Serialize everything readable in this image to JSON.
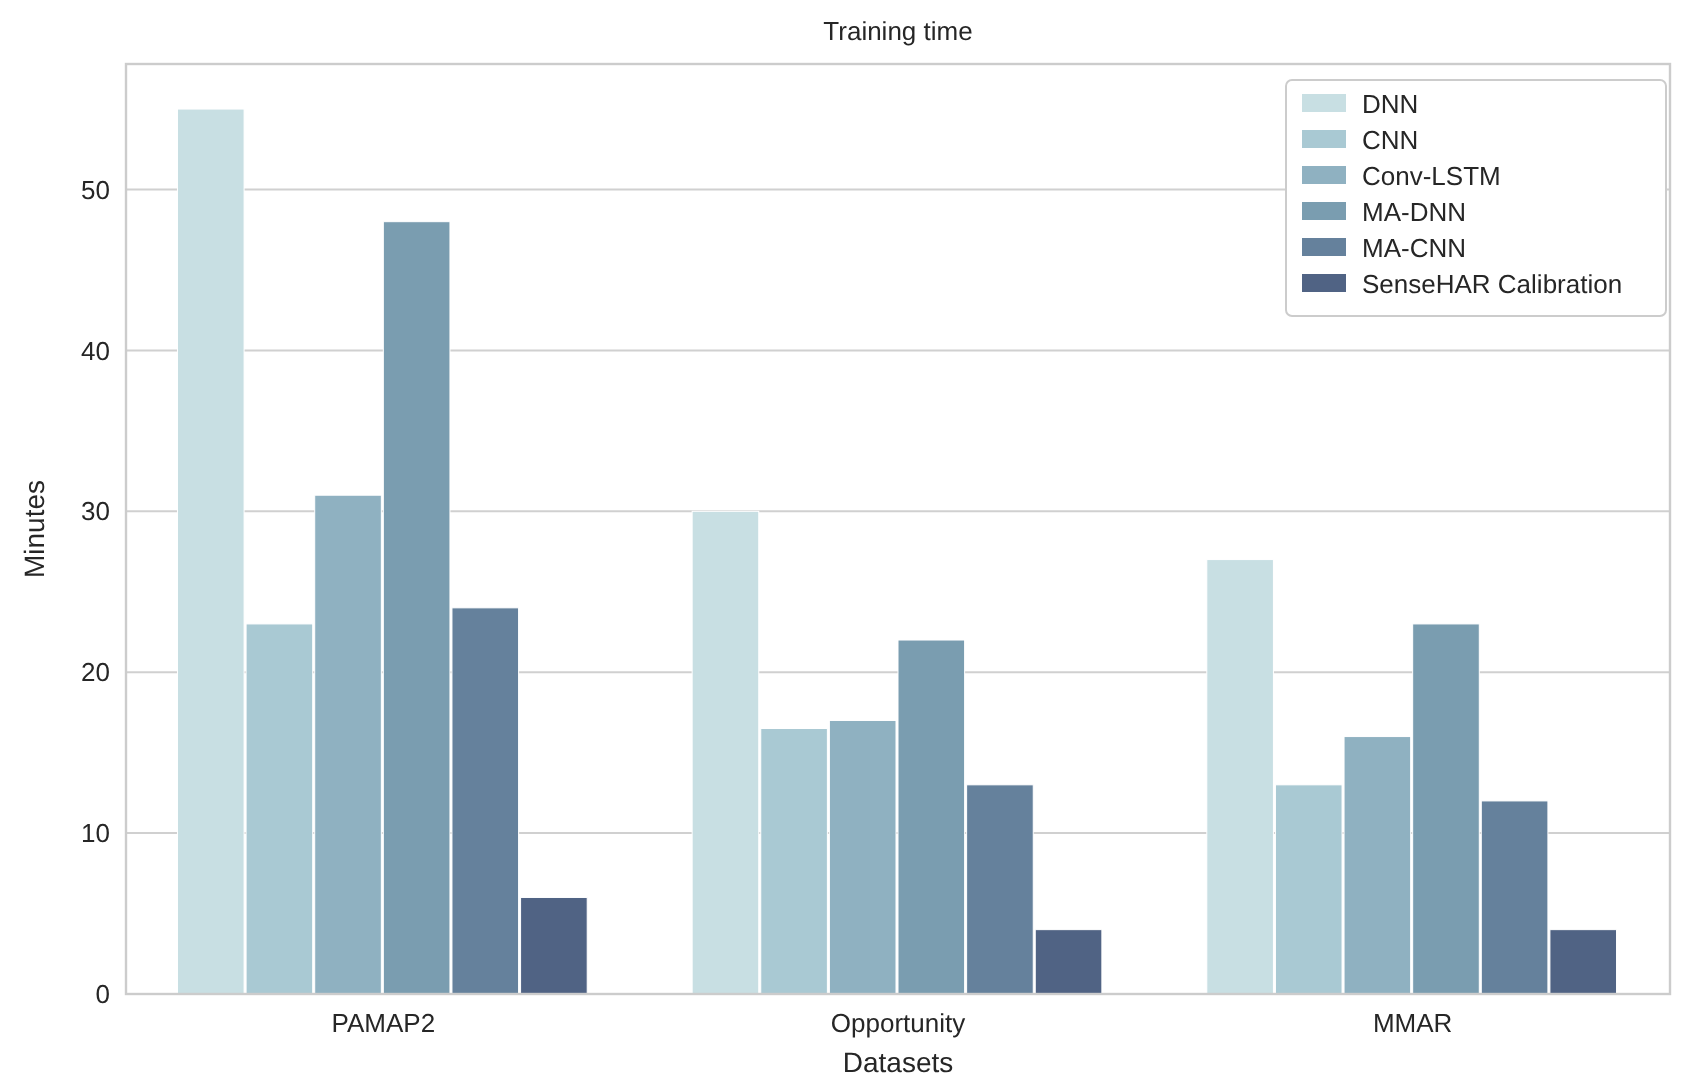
{
  "chart_data": {
    "type": "bar",
    "title": "Training time",
    "xlabel": "Datasets",
    "ylabel": "Minutes",
    "categories": [
      "PAMAP2",
      "Opportunity",
      "MMAR"
    ],
    "series": [
      {
        "name": "DNN",
        "color": "#c8dfe3",
        "values": [
          55,
          30,
          27
        ]
      },
      {
        "name": "CNN",
        "color": "#a9c9d3",
        "values": [
          23,
          16.5,
          13
        ]
      },
      {
        "name": "Conv-LSTM",
        "color": "#8fb1c1",
        "values": [
          31,
          17,
          16
        ]
      },
      {
        "name": "MA-DNN",
        "color": "#7a9db0",
        "values": [
          48,
          22,
          23
        ]
      },
      {
        "name": "MA-CNN",
        "color": "#65819c",
        "values": [
          24,
          13,
          12
        ]
      },
      {
        "name": "SenseHAR Calibration",
        "color": "#506384",
        "values": [
          6,
          4,
          4
        ]
      }
    ],
    "ylim": [
      0,
      57.8
    ],
    "yticks": [
      0,
      10,
      20,
      30,
      40,
      50
    ],
    "grid": "y",
    "legend": "top right"
  }
}
